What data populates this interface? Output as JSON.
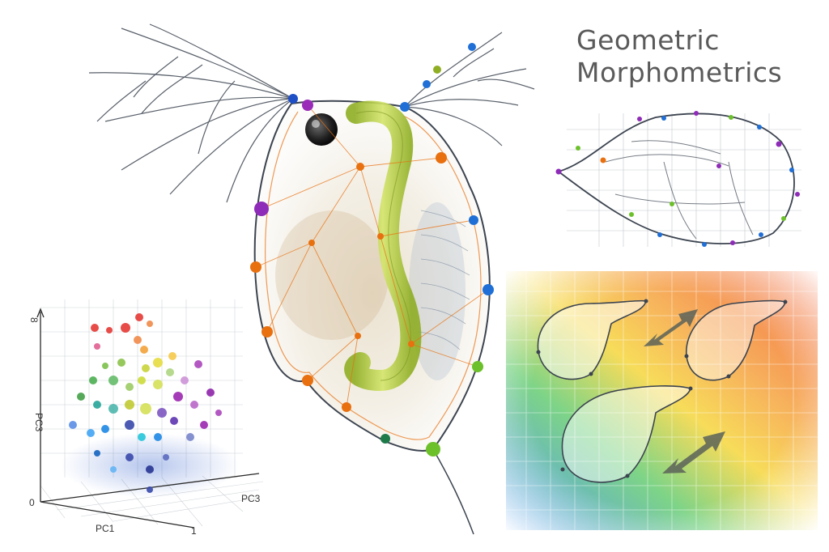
{
  "title": {
    "line1": "Geometric",
    "line2": "Morphometrics"
  },
  "pca_plot": {
    "x_axis_label": "PC1",
    "y_axis_label": "PC3",
    "z_axis_label": "PC3",
    "origin_tick": "0",
    "x_end_tick": "1",
    "y_top_tick": "8"
  },
  "colors": {
    "landmark_purple": "#8e2bb8",
    "landmark_orange": "#e8700f",
    "landmark_blue": "#1f6fd6",
    "landmark_green": "#6cc02a",
    "gut_green": "#b8d23a",
    "outline": "#3c4450",
    "heatmap_red": "#f0582a",
    "heatmap_yellow": "#f6d847",
    "heatmap_green": "#6fcf7a",
    "heatmap_blue": "#3f8ff0"
  }
}
